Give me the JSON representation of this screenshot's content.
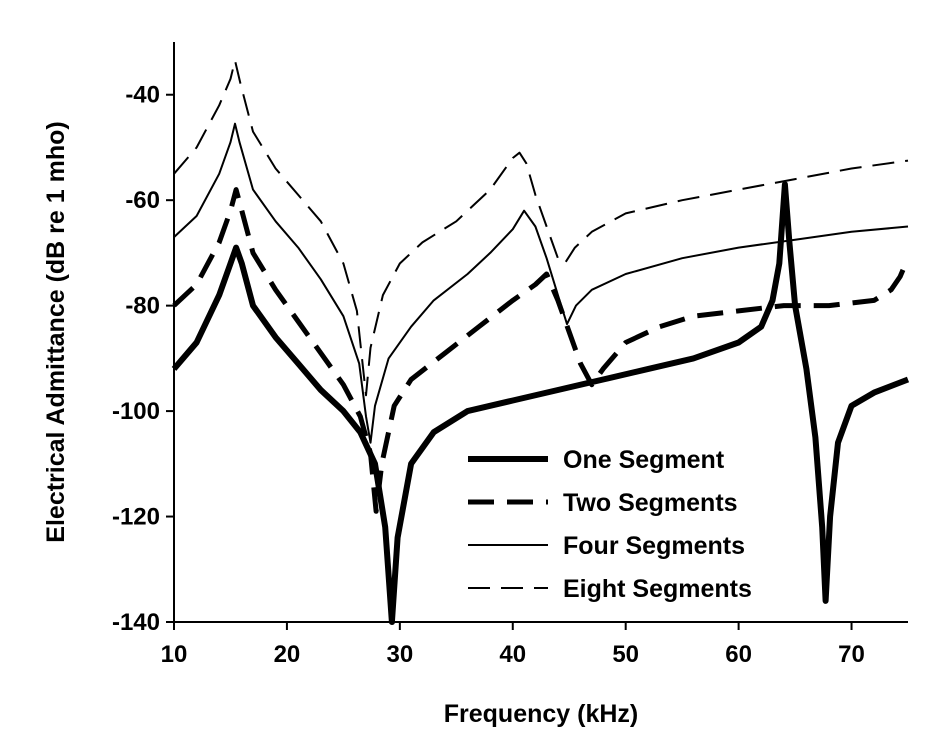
{
  "chart_data": {
    "type": "line",
    "title": "",
    "xlabel": "Frequency (kHz)",
    "ylabel": "Electrical Admittance (dB re 1 mho)",
    "xlim": [
      10,
      75
    ],
    "ylim": [
      -140,
      -30
    ],
    "x_ticks": [
      10,
      20,
      30,
      40,
      50,
      60,
      70
    ],
    "y_ticks": [
      -40,
      -60,
      -80,
      -100,
      -120,
      -140
    ],
    "grid": false,
    "legend_position": "bottom-right",
    "series": [
      {
        "name": "One Segment",
        "style": "solid-thick",
        "color": "#000000",
        "points": [
          [
            10,
            -92
          ],
          [
            12,
            -87
          ],
          [
            14,
            -78
          ],
          [
            15,
            -72
          ],
          [
            15.5,
            -69
          ],
          [
            16,
            -72
          ],
          [
            17,
            -80
          ],
          [
            19,
            -86
          ],
          [
            21,
            -91
          ],
          [
            23,
            -96
          ],
          [
            25,
            -100
          ],
          [
            26.5,
            -104
          ],
          [
            27.8,
            -110
          ],
          [
            28.7,
            -122
          ],
          [
            29.3,
            -140
          ],
          [
            29.8,
            -124
          ],
          [
            31,
            -110
          ],
          [
            33,
            -104
          ],
          [
            36,
            -100
          ],
          [
            40,
            -98
          ],
          [
            44,
            -96
          ],
          [
            48,
            -94
          ],
          [
            52,
            -92
          ],
          [
            56,
            -90
          ],
          [
            60,
            -87
          ],
          [
            62,
            -84
          ],
          [
            63,
            -79
          ],
          [
            63.6,
            -72
          ],
          [
            64.1,
            -57
          ],
          [
            64.5,
            -68
          ],
          [
            65,
            -80
          ],
          [
            66,
            -92
          ],
          [
            66.8,
            -105
          ],
          [
            67.4,
            -122
          ],
          [
            67.7,
            -136
          ],
          [
            68.1,
            -120
          ],
          [
            68.8,
            -106
          ],
          [
            70,
            -99
          ],
          [
            72,
            -96.5
          ],
          [
            75,
            -94
          ]
        ]
      },
      {
        "name": "Two Segments",
        "style": "dashed-thick",
        "color": "#000000",
        "points": [
          [
            10,
            -80
          ],
          [
            12,
            -76
          ],
          [
            14,
            -68
          ],
          [
            15,
            -62
          ],
          [
            15.5,
            -58
          ],
          [
            16,
            -62
          ],
          [
            17,
            -70
          ],
          [
            19,
            -77
          ],
          [
            21,
            -83
          ],
          [
            23,
            -89
          ],
          [
            25,
            -95
          ],
          [
            26.5,
            -101
          ],
          [
            27.4,
            -108
          ],
          [
            27.9,
            -119
          ],
          [
            28.4,
            -110
          ],
          [
            29.5,
            -99
          ],
          [
            31,
            -94
          ],
          [
            34,
            -89
          ],
          [
            37,
            -84
          ],
          [
            40,
            -79
          ],
          [
            42,
            -76
          ],
          [
            43,
            -74
          ],
          [
            44,
            -79
          ],
          [
            45,
            -85
          ],
          [
            46,
            -91
          ],
          [
            47,
            -95
          ],
          [
            48,
            -92
          ],
          [
            50,
            -87
          ],
          [
            53,
            -84
          ],
          [
            56,
            -82
          ],
          [
            60,
            -81
          ],
          [
            64,
            -80
          ],
          [
            68,
            -80
          ],
          [
            70,
            -79.5
          ],
          [
            72,
            -79
          ],
          [
            73.5,
            -77
          ],
          [
            74.3,
            -74.5
          ],
          [
            75,
            -71
          ]
        ]
      },
      {
        "name": "Four Segments",
        "style": "solid-thin",
        "color": "#000000",
        "points": [
          [
            10,
            -67
          ],
          [
            12,
            -63
          ],
          [
            14,
            -55
          ],
          [
            15,
            -49
          ],
          [
            15.4,
            -45.5
          ],
          [
            15.8,
            -49
          ],
          [
            17,
            -58
          ],
          [
            19,
            -64
          ],
          [
            21,
            -69
          ],
          [
            23,
            -75
          ],
          [
            25,
            -82
          ],
          [
            26.4,
            -91
          ],
          [
            27,
            -101
          ],
          [
            27.4,
            -106
          ],
          [
            27.8,
            -99
          ],
          [
            29,
            -90
          ],
          [
            31,
            -84
          ],
          [
            33,
            -79
          ],
          [
            36,
            -74
          ],
          [
            38,
            -70
          ],
          [
            40,
            -65.5
          ],
          [
            41,
            -62
          ],
          [
            42,
            -65
          ],
          [
            43,
            -71
          ],
          [
            44,
            -78
          ],
          [
            44.8,
            -83.5
          ],
          [
            45.6,
            -80
          ],
          [
            47,
            -77
          ],
          [
            50,
            -74
          ],
          [
            55,
            -71
          ],
          [
            60,
            -69
          ],
          [
            65,
            -67.5
          ],
          [
            70,
            -66
          ],
          [
            75,
            -65
          ]
        ]
      },
      {
        "name": "Eight Segments",
        "style": "dashed-thin",
        "color": "#000000",
        "points": [
          [
            10,
            -55
          ],
          [
            12,
            -50
          ],
          [
            14,
            -42
          ],
          [
            15,
            -37
          ],
          [
            15.4,
            -33.5
          ],
          [
            15.9,
            -38
          ],
          [
            17,
            -47
          ],
          [
            19,
            -54
          ],
          [
            21,
            -59
          ],
          [
            23,
            -64
          ],
          [
            25,
            -72
          ],
          [
            26.2,
            -81
          ],
          [
            26.8,
            -93
          ],
          [
            27,
            -97
          ],
          [
            27.4,
            -88
          ],
          [
            28.5,
            -78
          ],
          [
            30,
            -72
          ],
          [
            32,
            -68
          ],
          [
            35,
            -64
          ],
          [
            38,
            -58
          ],
          [
            40,
            -52
          ],
          [
            40.6,
            -51
          ],
          [
            41.2,
            -53
          ],
          [
            42,
            -59
          ],
          [
            43,
            -65
          ],
          [
            44,
            -71
          ],
          [
            44.6,
            -72
          ],
          [
            45.5,
            -69
          ],
          [
            47,
            -66
          ],
          [
            50,
            -62.5
          ],
          [
            55,
            -60
          ],
          [
            60,
            -58
          ],
          [
            65,
            -56
          ],
          [
            70,
            -54
          ],
          [
            75,
            -52.5
          ]
        ]
      }
    ]
  }
}
